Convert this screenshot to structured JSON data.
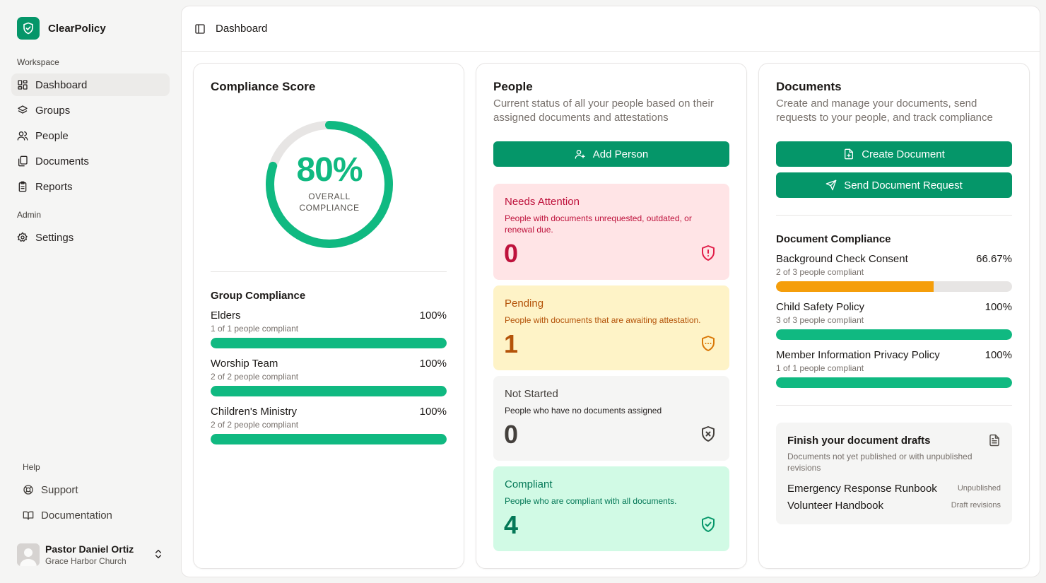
{
  "app": {
    "name": "ClearPolicy"
  },
  "sidebar": {
    "workspace_label": "Workspace",
    "workspace_items": [
      {
        "label": "Dashboard",
        "icon": "dashboard-icon",
        "active": true
      },
      {
        "label": "Groups",
        "icon": "layers-icon"
      },
      {
        "label": "People",
        "icon": "users-icon"
      },
      {
        "label": "Documents",
        "icon": "documents-icon"
      },
      {
        "label": "Reports",
        "icon": "clipboard-icon"
      }
    ],
    "admin_label": "Admin",
    "admin_items": [
      {
        "label": "Settings",
        "icon": "gear-icon"
      }
    ],
    "help_label": "Help",
    "help_items": [
      {
        "label": "Support",
        "icon": "lifebuoy-icon"
      },
      {
        "label": "Documentation",
        "icon": "book-icon"
      }
    ],
    "user": {
      "name": "Pastor Daniel Ortiz",
      "org": "Grace Harbor Church"
    }
  },
  "topbar": {
    "title": "Dashboard"
  },
  "score_card": {
    "title": "Compliance Score",
    "percent": 80,
    "percent_label": "80%",
    "caption_line1": "OVERALL",
    "caption_line2": "COMPLIANCE",
    "group_heading": "Group Compliance",
    "groups": [
      {
        "name": "Elders",
        "percent_label": "100%",
        "sub": "1 of 1 people compliant",
        "fraction": 1.0
      },
      {
        "name": "Worship Team",
        "percent_label": "100%",
        "sub": "2 of 2 people compliant",
        "fraction": 1.0
      },
      {
        "name": "Children's Ministry",
        "percent_label": "100%",
        "sub": "2 of 2 people compliant",
        "fraction": 1.0
      }
    ]
  },
  "people_card": {
    "title": "People",
    "subtitle": "Current status of all your people based on their assigned documents and attestations",
    "add_button": "Add Person",
    "statuses": [
      {
        "title": "Needs Attention",
        "desc": "People with documents unrequested, outdated, or renewal due.",
        "count": "0",
        "icon": "shield-alert-icon"
      },
      {
        "title": "Pending",
        "desc": "People with documents that are awaiting attestation.",
        "count": "1",
        "icon": "shield-ellipsis-icon"
      },
      {
        "title": "Not Started",
        "desc": "People who have no documents assigned",
        "count": "0",
        "icon": "shield-x-icon"
      },
      {
        "title": "Compliant",
        "desc": "People who are compliant with all documents.",
        "count": "4",
        "icon": "shield-check-icon"
      }
    ]
  },
  "documents_card": {
    "title": "Documents",
    "subtitle": "Create and manage your documents, send requests to your people, and track compliance",
    "create_button": "Create Document",
    "send_button": "Send Document Request",
    "compliance_heading": "Document Compliance",
    "documents": [
      {
        "name": "Background Check Consent",
        "percent_label": "66.67%",
        "sub": "2 of 3 people compliant",
        "fraction": 0.6667
      },
      {
        "name": "Child Safety Policy",
        "percent_label": "100%",
        "sub": "3 of 3 people compliant",
        "fraction": 1.0
      },
      {
        "name": "Member Information Privacy Policy",
        "percent_label": "100%",
        "sub": "1 of 1 people compliant",
        "fraction": 1.0
      }
    ],
    "drafts": {
      "title": "Finish your document drafts",
      "subtitle": "Documents not yet published or with unpublished revisions",
      "items": [
        {
          "name": "Emergency Response Runbook",
          "status": "Unpublished"
        },
        {
          "name": "Volunteer Handbook",
          "status": "Draft revisions"
        }
      ]
    }
  },
  "colors": {
    "brand": "#059669",
    "success": "#10b981",
    "warning": "#f59e0b",
    "danger": "#e11d48",
    "track": "#e7e5e4"
  }
}
